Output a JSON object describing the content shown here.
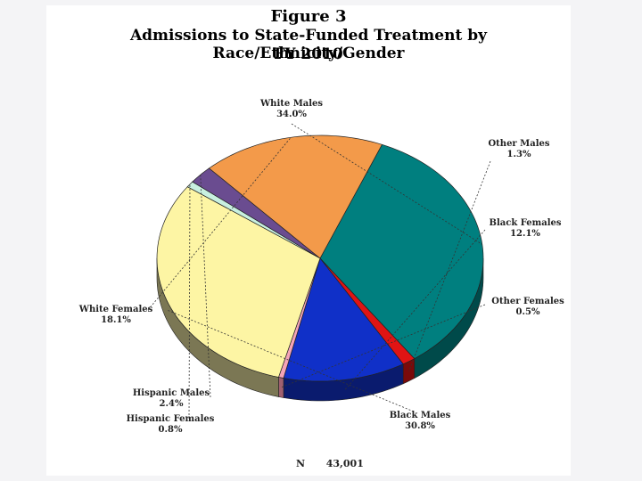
{
  "chart_data": {
    "type": "pie",
    "title": "Figure 3",
    "subtitle": "Admissions to State-Funded Treatment by Race/Ethnicity/Gender",
    "subtitle2": "FY 2010",
    "slices": [
      {
        "label": "White Males",
        "value": 34.0,
        "value_label": "34.0%",
        "color": "#007f7f",
        "side": "#004a4a"
      },
      {
        "label": "Other Males",
        "value": 1.3,
        "value_label": "1.3%",
        "color": "#e01414",
        "side": "#7a0a0a"
      },
      {
        "label": "Black Females",
        "value": 12.1,
        "value_label": "12.1%",
        "color": "#1030c8",
        "side": "#0a1b6e"
      },
      {
        "label": "Other Females",
        "value": 0.5,
        "value_label": "0.5%",
        "color": "#f4a4b8",
        "side": "#a06070"
      },
      {
        "label": "Black Males",
        "value": 30.8,
        "value_label": "30.8%",
        "color": "#fdf5a4",
        "side": "#7b7754"
      },
      {
        "label": "Hispanic Females",
        "value": 0.8,
        "value_label": "0.8%",
        "color": "#c8f0e0",
        "side": "#6f8a80"
      },
      {
        "label": "Hispanic Males",
        "value": 2.4,
        "value_label": "2.4%",
        "color": "#6a4c90",
        "side": "#2a1e3e"
      },
      {
        "label": "White Females",
        "value": 18.1,
        "value_label": "18.1%",
        "color": "#f39a4a",
        "side": "#7a4420"
      }
    ]
  },
  "footer": {
    "n_label": "N",
    "n_value": "43,001"
  }
}
